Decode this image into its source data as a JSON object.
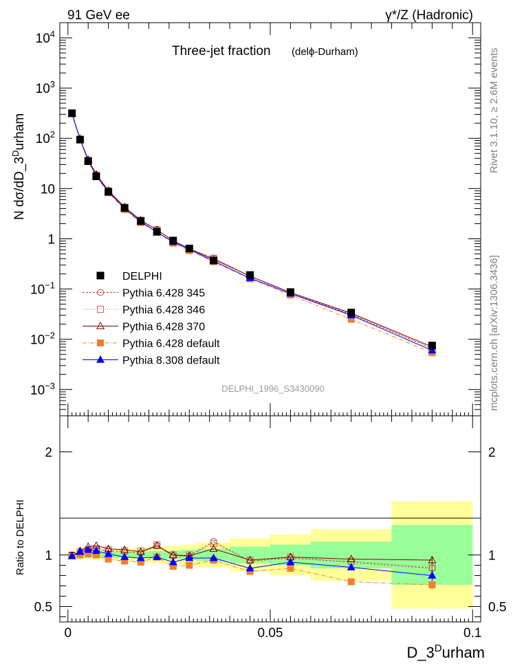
{
  "header": {
    "left": "91 GeV ee",
    "right": "γ*/Z (Hadronic)"
  },
  "side_labels": {
    "rivet": "Rivet 3.1.10, ≥ 2.6M events",
    "mcplots": "mcplots.cern.ch [arXiv:1306.3436]"
  },
  "chart_data": [
    {
      "type": "line",
      "title": "Three-jet fraction",
      "subtitle": "(delϕ-Durham)",
      "analysis_id": "DELPHI_1996_S3430090",
      "ylabel": "N dσ/dD_3^Durham",
      "xlabel": "D_3^Durham",
      "xlim": [
        -0.002,
        0.102
      ],
      "ylim": [
        0.0003,
        20000
      ],
      "yscale": "log",
      "yticks": [
        {
          "v": 0.001,
          "base": "10",
          "exp": "−3"
        },
        {
          "v": 0.01,
          "base": "10",
          "exp": "−2"
        },
        {
          "v": 0.1,
          "base": "10",
          "exp": "−1"
        },
        {
          "v": 1,
          "base": "1",
          "exp": ""
        },
        {
          "v": 10,
          "base": "10",
          "exp": ""
        },
        {
          "v": 100,
          "base": "10",
          "exp": "2"
        },
        {
          "v": 1000,
          "base": "10",
          "exp": "3"
        },
        {
          "v": 10000,
          "base": "10",
          "exp": "4"
        }
      ],
      "x": [
        0.001,
        0.003,
        0.005,
        0.007,
        0.01,
        0.014,
        0.018,
        0.022,
        0.026,
        0.03,
        0.036,
        0.045,
        0.055,
        0.07,
        0.09
      ],
      "series": [
        {
          "name": "DELPHI",
          "color": "#000000",
          "marker": "square-filled",
          "dash": "",
          "values": [
            315,
            94,
            35,
            17.5,
            8.6,
            4.1,
            2.25,
            1.38,
            0.92,
            0.64,
            0.37,
            0.19,
            0.087,
            0.034,
            0.0075
          ]
        },
        {
          "name": "Pythia 6.428 345",
          "color": "#c03a3a",
          "marker": "circle-open",
          "dash": "3,2",
          "values": [
            310,
            95,
            36.5,
            18.3,
            8.9,
            4.2,
            2.3,
            1.5,
            0.91,
            0.63,
            0.41,
            0.18,
            0.085,
            0.031,
            0.0066
          ]
        },
        {
          "name": "Pythia 6.428 346",
          "color": "#b8744a",
          "marker": "square-open",
          "dash": "1,2",
          "values": [
            312,
            96,
            36.8,
            18.5,
            9.0,
            4.25,
            2.35,
            1.52,
            0.92,
            0.64,
            0.41,
            0.181,
            0.086,
            0.032,
            0.0067
          ]
        },
        {
          "name": "Pythia 6.428 370",
          "color": "#800000",
          "marker": "triangle-open",
          "dash": "",
          "values": [
            312,
            97,
            37.5,
            19.1,
            9.1,
            4.3,
            2.33,
            1.5,
            0.92,
            0.63,
            0.39,
            0.181,
            0.085,
            0.033,
            0.0071
          ]
        },
        {
          "name": "Pythia 6.428 default",
          "color": "#f07f30",
          "marker": "square-filled",
          "dash": "6,2,1,2",
          "values": [
            310,
            94,
            35,
            17.5,
            8.3,
            3.85,
            2.1,
            1.35,
            0.82,
            0.58,
            0.35,
            0.16,
            0.076,
            0.025,
            0.0054
          ]
        },
        {
          "name": "Pythia 8.308 default",
          "color": "#0000ff",
          "marker": "triangle-filled",
          "dash": "",
          "values": [
            312,
            97,
            36.5,
            18.0,
            8.7,
            4.0,
            2.2,
            1.35,
            0.86,
            0.62,
            0.36,
            0.165,
            0.081,
            0.03,
            0.006
          ]
        }
      ]
    },
    {
      "type": "line",
      "ylabel": "Ratio to DELPHI",
      "xlabel": "D_3^Durham",
      "xlim": [
        -0.002,
        0.102
      ],
      "ylim": [
        0.35,
        2.35
      ],
      "yticks": [
        0.5,
        1,
        2
      ],
      "xticks": [
        {
          "v": 0,
          "label": "0"
        },
        {
          "v": 0.05,
          "label": "0.05"
        },
        {
          "v": 0.1,
          "label": "0.1"
        }
      ],
      "bands": [
        {
          "x0": 0,
          "x1": 0.002,
          "green": 0.02,
          "yellow": 0.04
        },
        {
          "x0": 0.002,
          "x1": 0.004,
          "green": 0.02,
          "yellow": 0.04
        },
        {
          "x0": 0.004,
          "x1": 0.006,
          "green": 0.02,
          "yellow": 0.04
        },
        {
          "x0": 0.006,
          "x1": 0.008,
          "green": 0.03,
          "yellow": 0.05
        },
        {
          "x0": 0.008,
          "x1": 0.012,
          "green": 0.03,
          "yellow": 0.05
        },
        {
          "x0": 0.012,
          "x1": 0.016,
          "green": 0.03,
          "yellow": 0.06
        },
        {
          "x0": 0.016,
          "x1": 0.02,
          "green": 0.03,
          "yellow": 0.07
        },
        {
          "x0": 0.02,
          "x1": 0.024,
          "green": 0.04,
          "yellow": 0.08
        },
        {
          "x0": 0.024,
          "x1": 0.028,
          "green": 0.04,
          "yellow": 0.09
        },
        {
          "x0": 0.028,
          "x1": 0.032,
          "green": 0.05,
          "yellow": 0.1
        },
        {
          "x0": 0.032,
          "x1": 0.04,
          "green": 0.06,
          "yellow": 0.12
        },
        {
          "x0": 0.04,
          "x1": 0.05,
          "green": 0.08,
          "yellow": 0.16
        },
        {
          "x0": 0.05,
          "x1": 0.06,
          "green": 0.1,
          "yellow": 0.2
        },
        {
          "x0": 0.06,
          "x1": 0.08,
          "green": 0.13,
          "yellow": 0.25
        },
        {
          "x0": 0.08,
          "x1": 0.1,
          "green": 0.29,
          "yellow": 0.52
        }
      ],
      "series": [
        {
          "name": "Pythia 6.428 345",
          "values": [
            0.99,
            1.02,
            1.04,
            1.05,
            1.04,
            1.03,
            1.02,
            1.09,
            0.99,
            0.99,
            1.13,
            0.94,
            0.97,
            0.93,
            0.87
          ]
        },
        {
          "name": "Pythia 6.428 346",
          "values": [
            0.99,
            1.03,
            1.05,
            1.06,
            1.05,
            1.04,
            1.04,
            1.1,
            1.0,
            1.0,
            1.11,
            0.95,
            0.98,
            0.94,
            0.88
          ]
        },
        {
          "name": "Pythia 6.428 370",
          "values": [
            0.99,
            1.04,
            1.08,
            1.09,
            1.06,
            1.05,
            1.03,
            1.09,
            1.0,
            0.99,
            1.06,
            0.95,
            0.98,
            0.96,
            0.95
          ]
        },
        {
          "name": "Pythia 6.428 default",
          "values": [
            0.99,
            1.0,
            1.01,
            1.0,
            0.96,
            0.94,
            0.93,
            0.98,
            0.89,
            0.9,
            0.95,
            0.84,
            0.87,
            0.74,
            0.71
          ]
        },
        {
          "name": "Pythia 8.308 default",
          "values": [
            0.99,
            1.03,
            1.05,
            1.04,
            1.01,
            0.98,
            0.97,
            0.98,
            0.93,
            0.97,
            0.97,
            0.87,
            0.93,
            0.88,
            0.8
          ]
        }
      ],
      "errors": [
        {
          "name": "Pythia 6.428 345",
          "index": 14,
          "err": 0.03
        },
        {
          "name": "Pythia 6.428 346",
          "index": 14,
          "err": 0.03
        },
        {
          "name": "Pythia 6.428 370",
          "index": 14,
          "err": 0.04
        },
        {
          "name": "Pythia 6.428 default",
          "index": 14,
          "err": 0.05
        },
        {
          "name": "Pythia 8.308 default",
          "index": 14,
          "err": 0.05
        },
        {
          "name": "Pythia 6.428 default",
          "index": 13,
          "err": 0.02
        }
      ]
    }
  ]
}
